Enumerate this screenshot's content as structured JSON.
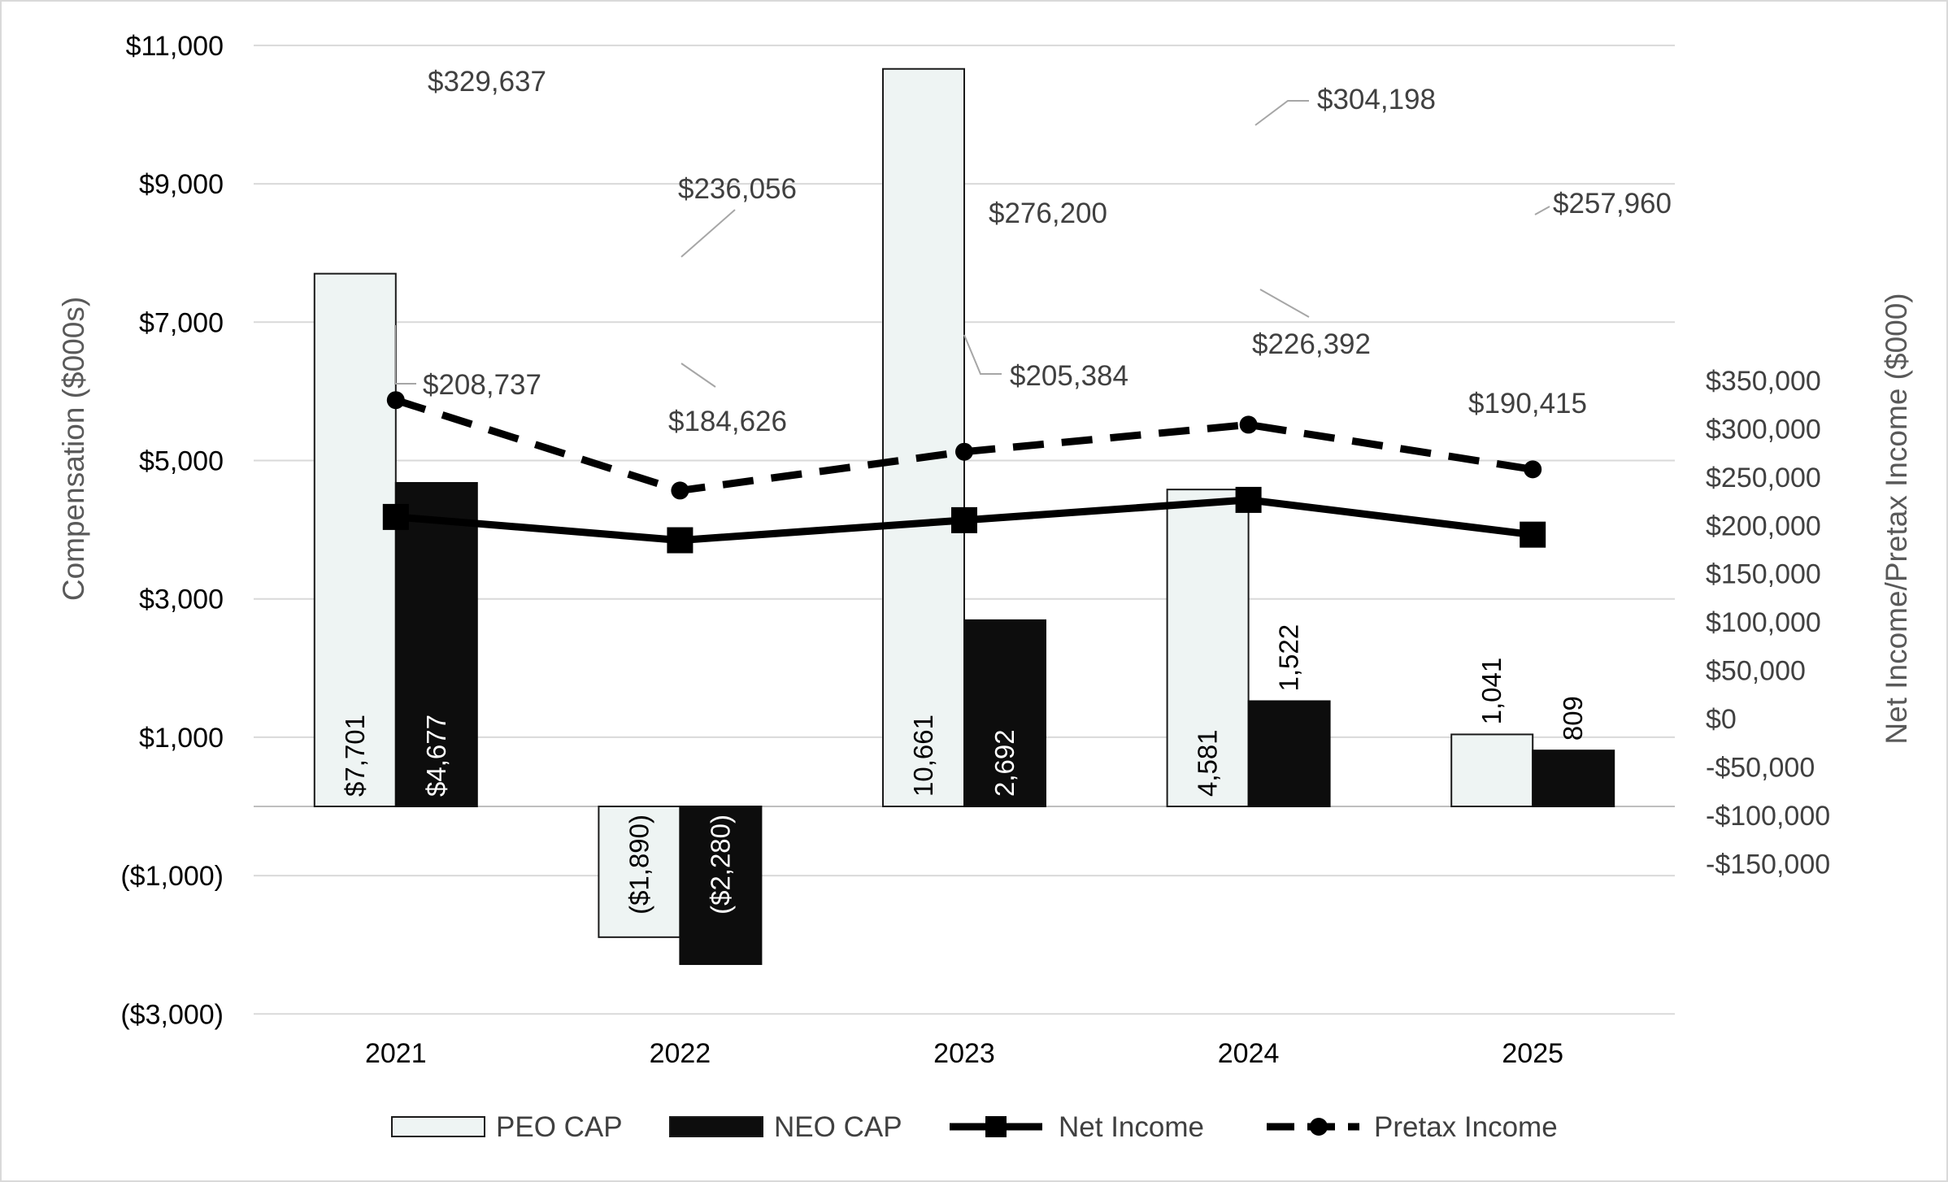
{
  "chart_data": {
    "type": "bar",
    "categories": [
      "2021",
      "2022",
      "2023",
      "2024",
      "2025"
    ],
    "series": [
      {
        "name": "PEO CAP",
        "axis": "left",
        "kind": "bar",
        "values": [
          7701,
          -1890,
          10661,
          4581,
          1041
        ],
        "labels": [
          "$7,701",
          "($1,890)",
          "10,661",
          "4,581",
          "1,041"
        ],
        "color": "#eef4f3"
      },
      {
        "name": "NEO CAP",
        "axis": "left",
        "kind": "bar",
        "values": [
          4677,
          -2280,
          2692,
          1522,
          809
        ],
        "labels": [
          "$4,677",
          "($2,280)",
          "2,692",
          "1,522",
          "809"
        ],
        "color": "#0d0d0d"
      },
      {
        "name": "Net Income",
        "axis": "right",
        "kind": "line",
        "style": "solid",
        "marker": "square",
        "values": [
          208737,
          184626,
          205384,
          226392,
          190415
        ],
        "labels": [
          "$208,737",
          "$184,626",
          "$205,384",
          "$226,392",
          "$190,415"
        ],
        "color": "#000000"
      },
      {
        "name": "Pretax Income",
        "axis": "right",
        "kind": "line",
        "style": "dashed",
        "marker": "circle",
        "values": [
          329637,
          236056,
          276200,
          304198,
          257960
        ],
        "labels": [
          "$329,637",
          "$236,056",
          "$276,200",
          "$304,198",
          "$257,960"
        ],
        "color": "#000000"
      }
    ],
    "y_left": {
      "label": "Compensation ($000s)",
      "ticks": [
        {
          "value": 11000,
          "label": "$11,000"
        },
        {
          "value": 9000,
          "label": "$9,000"
        },
        {
          "value": 7000,
          "label": "$7,000"
        },
        {
          "value": 5000,
          "label": "$5,000"
        },
        {
          "value": 3000,
          "label": "$3,000"
        },
        {
          "value": 1000,
          "label": "$1,000"
        },
        {
          "value": -1000,
          "label": "($1,000)"
        },
        {
          "value": -3000,
          "label": "($3,000)"
        }
      ],
      "negative_color": "#ff0000"
    },
    "y_right": {
      "label": "Net Income/Pretax Income ($000)",
      "ticks": [
        {
          "value": 350000,
          "label": "$350,000"
        },
        {
          "value": 300000,
          "label": "$300,000"
        },
        {
          "value": 250000,
          "label": "$250,000"
        },
        {
          "value": 200000,
          "label": "$200,000"
        },
        {
          "value": 150000,
          "label": "$150,000"
        },
        {
          "value": 100000,
          "label": "$100,000"
        },
        {
          "value": 50000,
          "label": "$50,000"
        },
        {
          "value": 0,
          "label": "$0"
        },
        {
          "value": -50000,
          "label": "-$50,000"
        },
        {
          "value": -100000,
          "label": "-$100,000"
        },
        {
          "value": -150000,
          "label": "-$150,000"
        }
      ]
    },
    "grid": true,
    "legend": {
      "placement": "bottom",
      "entries": [
        "PEO CAP",
        "NEO CAP",
        "Net Income",
        "Pretax Income"
      ]
    }
  }
}
